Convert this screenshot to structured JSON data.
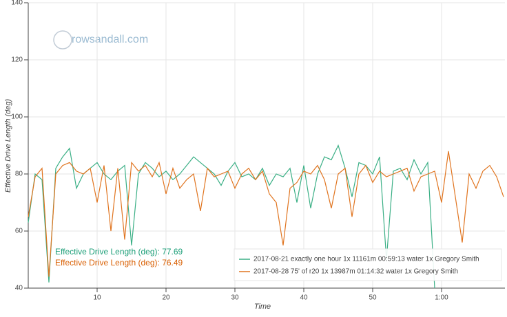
{
  "chart_data": {
    "type": "line",
    "watermark": "rowsandall.com",
    "xlabel": "Time",
    "ylabel": "Effective Drive Length (deg)",
    "xlim": [
      0,
      69.2
    ],
    "ylim": [
      40,
      140
    ],
    "xticks": [
      10,
      20,
      30,
      40,
      50,
      {
        "value": 60,
        "label": "1:00"
      }
    ],
    "yticks": [
      40,
      60,
      80,
      100,
      120,
      140
    ],
    "grid": true,
    "annotations": [
      {
        "text": "Effective Drive Length (deg):  77.69",
        "color": "#1b9e77"
      },
      {
        "text": "Effective Drive Length (deg):  76.49",
        "color": "#d95f02"
      }
    ],
    "series": [
      {
        "name": "2017-08-21 exactly one hour 1x 11161m 00:59:13 water 1x Gregory Smith",
        "color": "#3aaf85",
        "x": [
          0,
          1,
          2,
          3,
          4,
          5,
          6,
          7,
          8,
          9,
          10,
          11,
          12,
          13,
          14,
          15,
          16,
          17,
          18,
          19,
          20,
          21,
          22,
          23,
          24,
          25,
          26,
          27,
          28,
          29,
          30,
          31,
          32,
          33,
          34,
          35,
          36,
          37,
          38,
          39,
          40,
          41,
          42,
          43,
          44,
          45,
          46,
          47,
          48,
          49,
          50,
          51,
          52,
          53,
          54,
          55,
          56,
          57,
          58,
          59
        ],
        "values": [
          63,
          80,
          78,
          42,
          82,
          86,
          89,
          75,
          80,
          82,
          84,
          80,
          78,
          81,
          83,
          55,
          80,
          84,
          82,
          79,
          81,
          78,
          80,
          83,
          86,
          84,
          82,
          80,
          76,
          81,
          84,
          79,
          80,
          78,
          82,
          76,
          80,
          79,
          82,
          70,
          83,
          68,
          80,
          86,
          85,
          90,
          82,
          72,
          84,
          83,
          80,
          86,
          50,
          81,
          82,
          78,
          85,
          80,
          84,
          40
        ]
      },
      {
        "name": "2017-08-28 75' of r20 1x 13987m 01:14:32 water 1x Gregory Smith",
        "color": "#e0741f",
        "x": [
          0,
          1,
          2,
          3,
          4,
          5,
          6,
          7,
          8,
          9,
          10,
          11,
          12,
          13,
          14,
          15,
          16,
          17,
          18,
          19,
          20,
          21,
          22,
          23,
          24,
          25,
          26,
          27,
          28,
          29,
          30,
          31,
          32,
          33,
          34,
          35,
          36,
          37,
          38,
          39,
          40,
          41,
          42,
          43,
          44,
          45,
          46,
          47,
          48,
          49,
          50,
          51,
          52,
          53,
          54,
          55,
          56,
          57,
          58,
          59,
          60,
          61,
          62,
          63,
          64,
          65,
          66,
          67,
          68,
          69
        ],
        "values": [
          65,
          79,
          82,
          44,
          80,
          83,
          84,
          81,
          80,
          82,
          70,
          83,
          60,
          82,
          57,
          84,
          81,
          83,
          79,
          84,
          73,
          82,
          75,
          78,
          80,
          67,
          82,
          79,
          80,
          81,
          75,
          80,
          82,
          78,
          81,
          73,
          70,
          55,
          75,
          77,
          81,
          80,
          83,
          78,
          68,
          80,
          82,
          65,
          80,
          83,
          77,
          81,
          79,
          80,
          81,
          82,
          74,
          79,
          80,
          81,
          70,
          88,
          72,
          56,
          80,
          75,
          81,
          83,
          79,
          72
        ]
      }
    ]
  }
}
